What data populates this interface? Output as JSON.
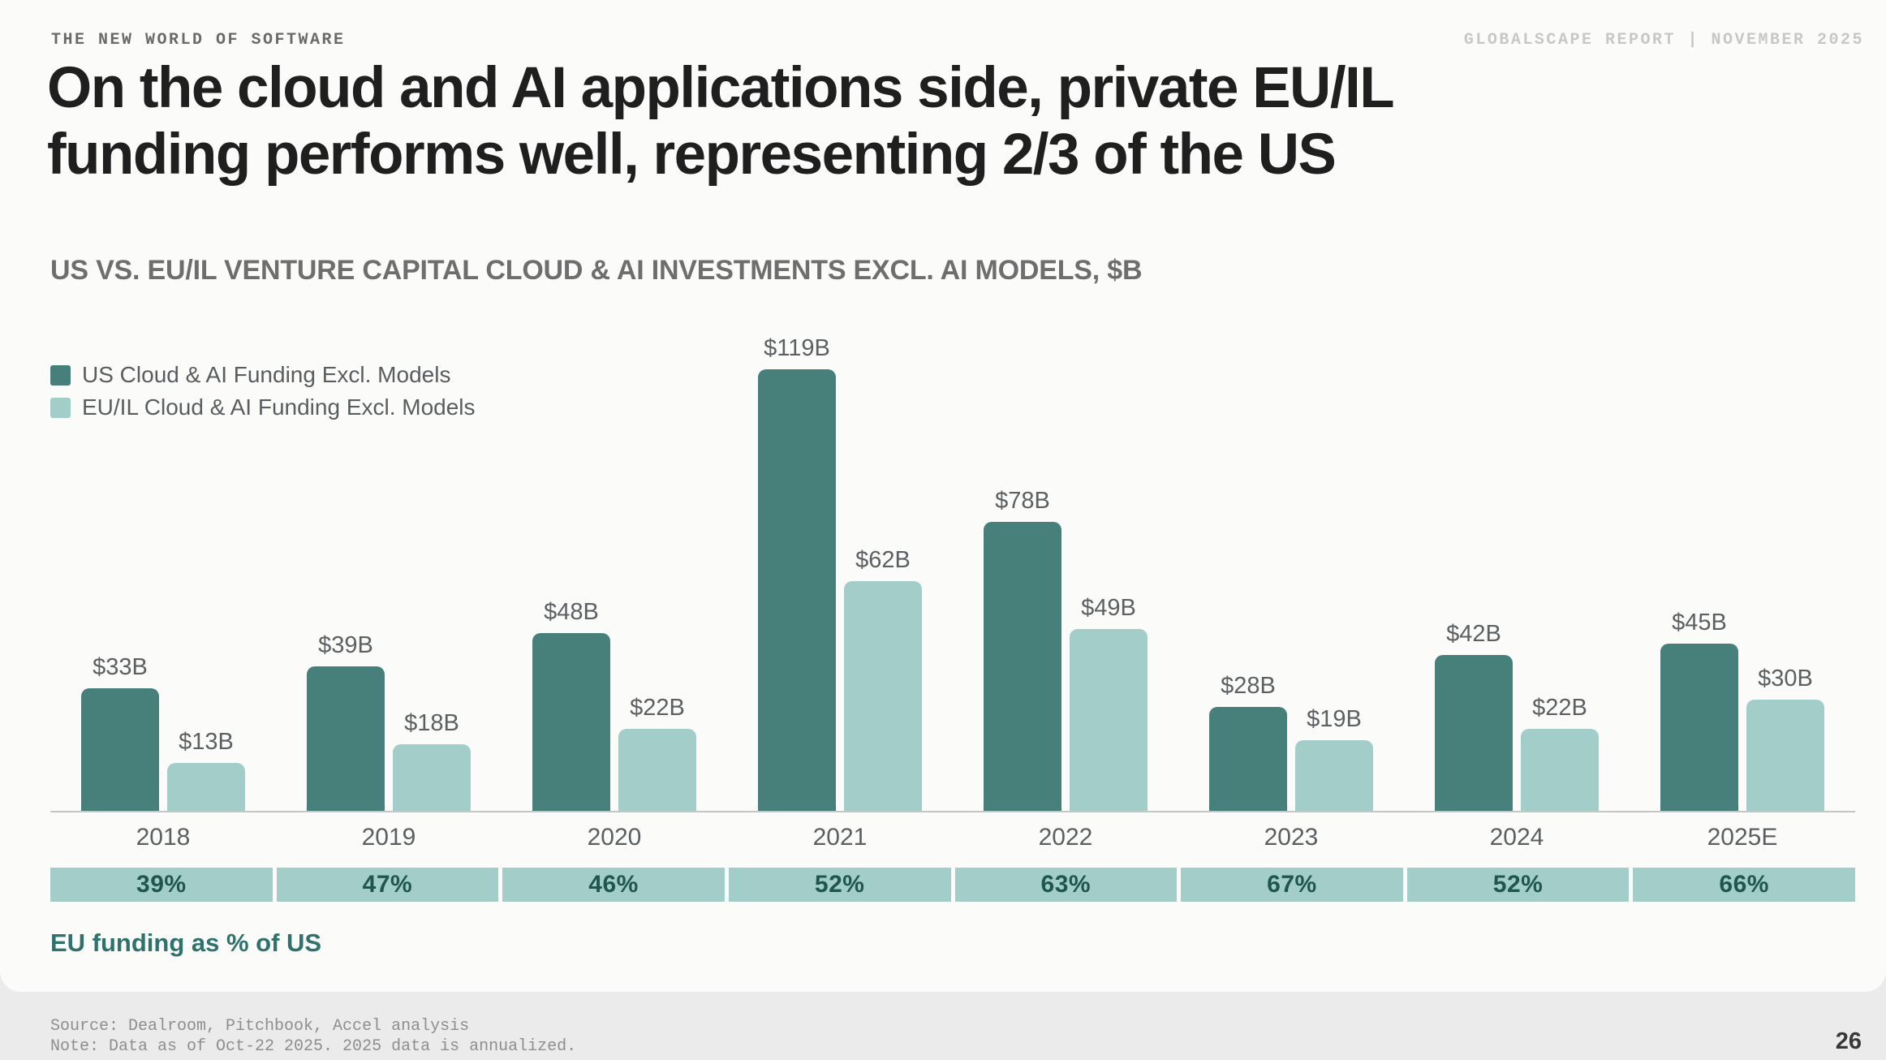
{
  "header": {
    "eyebrow": "THE NEW WORLD OF SOFTWARE",
    "report_tag": "GLOBALSCAPE REPORT | NOVEMBER 2025",
    "title_line1": "On the cloud and AI applications side, private EU/IL",
    "title_line2": "funding performs well, representing 2/3 of the US"
  },
  "chart_data": {
    "type": "bar",
    "title": "US VS. EU/IL VENTURE CAPITAL CLOUD & AI INVESTMENTS EXCL. AI MODELS, $B",
    "categories": [
      "2018",
      "2019",
      "2020",
      "2021",
      "2022",
      "2023",
      "2024",
      "2025E"
    ],
    "series": [
      {
        "name": "US Cloud & AI Funding Excl. Models",
        "color": "#47807B",
        "values": [
          33,
          39,
          48,
          119,
          78,
          28,
          42,
          45
        ]
      },
      {
        "name": "EU/IL Cloud & AI Funding Excl. Models",
        "color": "#A3CDC8",
        "values": [
          13,
          18,
          22,
          62,
          49,
          19,
          22,
          30
        ]
      }
    ],
    "value_prefix": "$",
    "value_suffix": "B",
    "ylabel": "",
    "xlabel": "",
    "ylim": [
      0,
      125
    ],
    "grid": false,
    "legend_position": "top-left",
    "percent_row": {
      "caption": "EU funding as % of US",
      "values": [
        "39%",
        "47%",
        "46%",
        "52%",
        "63%",
        "67%",
        "52%",
        "66%"
      ],
      "cell_bg": "#A3CDC8",
      "text_color": "#1F564F"
    }
  },
  "footer": {
    "source": "Source: Dealroom, Pitchbook, Accel analysis",
    "note": "Note: Data as of Oct-22 2025. 2025 data is annualized.",
    "page": "26"
  },
  "colors": {
    "us_bar": "#47807B",
    "eu_bar": "#A3CDC8",
    "accent_teal": "#2F716B",
    "slide_bg": "#FBFCFA",
    "footer_bg": "#EBEBEB"
  }
}
